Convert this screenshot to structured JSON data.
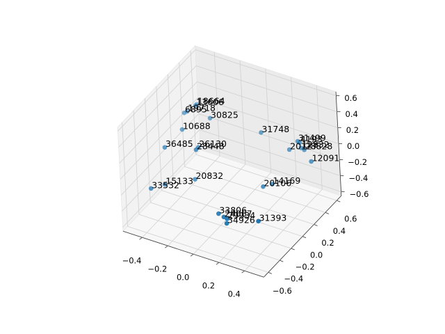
{
  "chart_data": {
    "type": "scatter3d",
    "color": "#1f77b4",
    "labels": [
      "18664",
      "13606",
      "19718",
      "6895",
      "30825",
      "10688",
      "36485",
      "26130",
      "28448",
      "31748",
      "31499",
      "4193",
      "20127",
      "12832",
      "28828",
      "12091",
      "20832",
      "15133",
      "33532",
      "20106",
      "14169",
      "33806",
      "24067",
      "29934",
      "34926",
      "31393"
    ],
    "x": [
      -0.28,
      -0.28,
      -0.32,
      -0.33,
      -0.17,
      -0.32,
      -0.37,
      -0.17,
      -0.17,
      0.12,
      0.34,
      0.36,
      0.29,
      0.35,
      0.38,
      0.44,
      -0.2,
      -0.35,
      -0.41,
      0.2,
      0.24,
      0.04,
      0.09,
      0.12,
      0.12,
      0.32
    ],
    "y": [
      0.09,
      0.07,
      0.01,
      -0.02,
      0.07,
      -0.09,
      -0.29,
      -0.15,
      -0.19,
      0.3,
      0.44,
      0.43,
      0.4,
      0.47,
      0.46,
      0.44,
      -0.17,
      -0.36,
      -0.47,
      0.12,
      0.19,
      -0.31,
      -0.33,
      -0.34,
      -0.35,
      -0.24
    ],
    "z": [
      0.5,
      0.5,
      0.45,
      0.45,
      0.4,
      0.3,
      0.2,
      0.2,
      0.2,
      0.2,
      0.1,
      0.1,
      0,
      0,
      0,
      -0.1,
      -0.2,
      -0.2,
      -0.2,
      -0.3,
      -0.3,
      -0.4,
      -0.4,
      -0.4,
      -0.45,
      -0.4
    ],
    "xlim": [
      -0.55,
      0.55
    ],
    "ylim": [
      -0.68,
      0.68
    ],
    "zlim": [
      -0.65,
      0.65
    ],
    "xticks": [
      {
        "value": -0.4,
        "label": "−0.4"
      },
      {
        "value": -0.2,
        "label": "−0.2"
      },
      {
        "value": 0,
        "label": "0.0"
      },
      0.2,
      0.4
    ],
    "yticks": [
      {
        "value": -0.6,
        "label": "−0.6"
      },
      {
        "value": -0.4,
        "label": "−0.4"
      },
      {
        "value": -0.2,
        "label": "−0.2"
      },
      {
        "value": 0,
        "label": "0.0"
      },
      0.2,
      0.4,
      0.6
    ],
    "zticks": [
      {
        "value": -0.6,
        "label": "−0.6"
      },
      {
        "value": -0.4,
        "label": "−0.4"
      },
      {
        "value": -0.2,
        "label": "−0.2"
      },
      {
        "value": 0,
        "label": "0.0"
      },
      0.2,
      0.4,
      0.6
    ],
    "grid": true
  }
}
